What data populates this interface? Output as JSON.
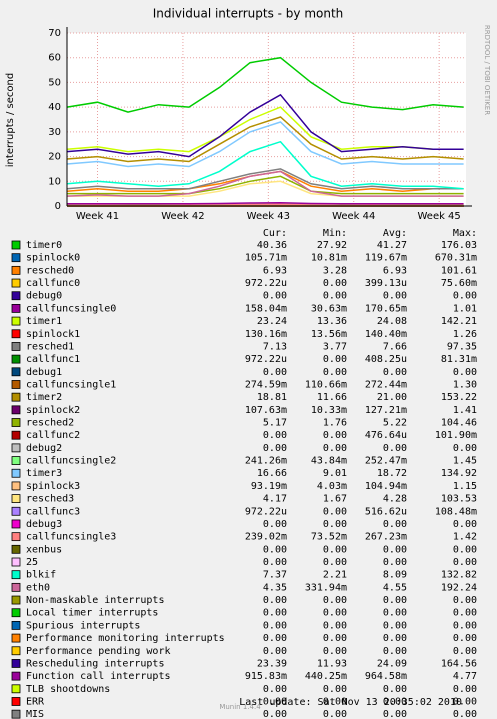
{
  "chart_data": {
    "type": "line",
    "title": "Individual interrupts - by month",
    "y_label": "interrupts / second",
    "side_label": "RRDTOOL / TOBI OETIKER",
    "footer_version": "Munin 1.4.4",
    "last_update": "Last update:  Sat Nov 13 20:35:02 2010",
    "columns": [
      "Cur:",
      "Min:",
      "Avg:",
      "Max:"
    ],
    "grid": true,
    "xlim": [
      0,
      32.7
    ],
    "xticks": [
      {
        "value": 2.5,
        "label": "Week 41"
      },
      {
        "value": 9.5,
        "label": "Week 42"
      },
      {
        "value": 16.5,
        "label": "Week 43"
      },
      {
        "value": 23.5,
        "label": "Week 44"
      },
      {
        "value": 30.5,
        "label": "Week 45"
      }
    ],
    "ylim": [
      0,
      70
    ],
    "yticks": [
      0,
      10,
      20,
      30,
      40,
      50,
      60,
      70
    ],
    "x": [
      0,
      2.5,
      5,
      7.5,
      10,
      12.5,
      15,
      17.5,
      20,
      22.5,
      25,
      27.5,
      30,
      32.5
    ],
    "series": [
      {
        "name": "timer0",
        "color": "#00cc00",
        "cur": "40.36",
        "min": "27.92",
        "avg": "41.27",
        "max": "176.03",
        "values": [
          40,
          42,
          38,
          41,
          40,
          48,
          58,
          60,
          50,
          42,
          40,
          39,
          41,
          40
        ]
      },
      {
        "name": "spinlock0",
        "color": "#0066b3",
        "cur": "105.71m",
        "min": "10.81m",
        "avg": "119.67m",
        "max": "670.31m",
        "values": [
          0.1,
          0.1,
          0.1,
          0.1,
          0.1,
          0.2,
          0.3,
          0.3,
          0.2,
          0.1,
          0.1,
          0.1,
          0.1,
          0.1
        ]
      },
      {
        "name": "resched0",
        "color": "#ff8000",
        "cur": "6.93",
        "min": "3.28",
        "avg": "6.93",
        "max": "101.61",
        "values": [
          6,
          7,
          6,
          6,
          7,
          9,
          12,
          14,
          8,
          6,
          7,
          6,
          7,
          7
        ]
      },
      {
        "name": "callfunc0",
        "color": "#ffcc00",
        "cur": "972.22u",
        "min": "0.00",
        "avg": "399.13u",
        "max": "75.60m",
        "values": [
          0,
          0,
          0,
          0,
          0,
          0,
          0,
          0,
          0,
          0,
          0,
          0,
          0,
          0
        ]
      },
      {
        "name": "debug0",
        "color": "#330099",
        "cur": "0.00",
        "min": "0.00",
        "avg": "0.00",
        "max": "0.00",
        "values": [
          0,
          0,
          0,
          0,
          0,
          0,
          0,
          0,
          0,
          0,
          0,
          0,
          0,
          0
        ]
      },
      {
        "name": "callfuncsingle0",
        "color": "#990099",
        "cur": "158.04m",
        "min": "30.63m",
        "avg": "170.65m",
        "max": "1.01",
        "values": [
          0.2,
          0.2,
          0.2,
          0.2,
          0.2,
          0.3,
          0.5,
          0.6,
          0.3,
          0.2,
          0.2,
          0.2,
          0.2,
          0.2
        ]
      },
      {
        "name": "timer1",
        "color": "#ccff00",
        "cur": "23.24",
        "min": "13.36",
        "avg": "24.08",
        "max": "142.21",
        "values": [
          23,
          24,
          22,
          23,
          22,
          28,
          35,
          40,
          28,
          23,
          24,
          24,
          23,
          23
        ]
      },
      {
        "name": "spinlock1",
        "color": "#ff0000",
        "cur": "130.16m",
        "min": "13.56m",
        "avg": "140.40m",
        "max": "1.26",
        "values": [
          0.1,
          0.1,
          0.1,
          0.1,
          0.1,
          0.2,
          0.3,
          0.3,
          0.2,
          0.1,
          0.1,
          0.1,
          0.1,
          0.1
        ]
      },
      {
        "name": "resched1",
        "color": "#808080",
        "cur": "7.13",
        "min": "3.77",
        "avg": "7.66",
        "max": "97.35",
        "values": [
          7,
          8,
          7,
          7,
          7,
          10,
          13,
          15,
          9,
          7,
          8,
          7,
          7,
          7
        ]
      },
      {
        "name": "callfunc1",
        "color": "#008f00",
        "cur": "972.22u",
        "min": "0.00",
        "avg": "408.25u",
        "max": "81.31m",
        "values": [
          0,
          0,
          0,
          0,
          0,
          0,
          0,
          0,
          0,
          0,
          0,
          0,
          0,
          0
        ]
      },
      {
        "name": "debug1",
        "color": "#00487d",
        "cur": "0.00",
        "min": "0.00",
        "avg": "0.00",
        "max": "0.00",
        "values": [
          0,
          0,
          0,
          0,
          0,
          0,
          0,
          0,
          0,
          0,
          0,
          0,
          0,
          0
        ]
      },
      {
        "name": "callfuncsingle1",
        "color": "#b35a00",
        "cur": "274.59m",
        "min": "110.66m",
        "avg": "272.44m",
        "max": "1.30",
        "values": [
          0.3,
          0.3,
          0.3,
          0.3,
          0.3,
          0.4,
          0.6,
          0.7,
          0.4,
          0.3,
          0.3,
          0.3,
          0.3,
          0.3
        ]
      },
      {
        "name": "timer2",
        "color": "#b38f00",
        "cur": "18.81",
        "min": "11.66",
        "avg": "21.00",
        "max": "153.22",
        "values": [
          19,
          20,
          18,
          19,
          18,
          25,
          32,
          36,
          25,
          19,
          20,
          19,
          20,
          19
        ]
      },
      {
        "name": "spinlock2",
        "color": "#6b006b",
        "cur": "107.63m",
        "min": "10.33m",
        "avg": "127.21m",
        "max": "1.41",
        "values": [
          0.1,
          0.1,
          0.1,
          0.1,
          0.1,
          0.2,
          0.3,
          0.3,
          0.2,
          0.1,
          0.1,
          0.1,
          0.1,
          0.1
        ]
      },
      {
        "name": "resched2",
        "color": "#8fb300",
        "cur": "5.17",
        "min": "1.76",
        "avg": "5.22",
        "max": "104.46",
        "values": [
          5,
          5,
          5,
          5,
          5,
          7,
          10,
          12,
          6,
          5,
          5,
          5,
          5,
          5
        ]
      },
      {
        "name": "callfunc2",
        "color": "#b30000",
        "cur": "0.00",
        "min": "0.00",
        "avg": "476.64u",
        "max": "101.90m",
        "values": [
          0,
          0,
          0,
          0,
          0,
          0,
          0,
          0,
          0,
          0,
          0,
          0,
          0,
          0
        ]
      },
      {
        "name": "debug2",
        "color": "#bebebe",
        "cur": "0.00",
        "min": "0.00",
        "avg": "0.00",
        "max": "0.00",
        "values": [
          0,
          0,
          0,
          0,
          0,
          0,
          0,
          0,
          0,
          0,
          0,
          0,
          0,
          0
        ]
      },
      {
        "name": "callfuncsingle2",
        "color": "#80ff80",
        "cur": "241.26m",
        "min": "43.84m",
        "avg": "252.47m",
        "max": "1.45",
        "values": [
          0.2,
          0.3,
          0.2,
          0.2,
          0.3,
          0.4,
          0.6,
          0.7,
          0.4,
          0.2,
          0.3,
          0.2,
          0.2,
          0.2
        ]
      },
      {
        "name": "timer3",
        "color": "#80c9ff",
        "cur": "16.66",
        "min": "9.01",
        "avg": "18.72",
        "max": "134.92",
        "values": [
          17,
          18,
          16,
          17,
          16,
          22,
          30,
          34,
          22,
          17,
          18,
          17,
          17,
          17
        ]
      },
      {
        "name": "spinlock3",
        "color": "#ffc080",
        "cur": "93.19m",
        "min": "4.03m",
        "avg": "104.94m",
        "max": "1.15",
        "values": [
          0.1,
          0.1,
          0.1,
          0.1,
          0.1,
          0.2,
          0.3,
          0.3,
          0.2,
          0.1,
          0.1,
          0.1,
          0.1,
          0.1
        ]
      },
      {
        "name": "resched3",
        "color": "#ffe680",
        "cur": "4.17",
        "min": "1.67",
        "avg": "4.28",
        "max": "103.53",
        "values": [
          4,
          4,
          4,
          4,
          4,
          6,
          9,
          10,
          5,
          4,
          4,
          4,
          4,
          4
        ]
      },
      {
        "name": "callfunc3",
        "color": "#aa80ff",
        "cur": "972.22u",
        "min": "0.00",
        "avg": "516.62u",
        "max": "108.48m",
        "values": [
          0,
          0,
          0,
          0,
          0,
          0,
          0,
          0,
          0,
          0,
          0,
          0,
          0,
          0
        ]
      },
      {
        "name": "debug3",
        "color": "#ee00cc",
        "cur": "0.00",
        "min": "0.00",
        "avg": "0.00",
        "max": "0.00",
        "values": [
          0,
          0,
          0,
          0,
          0,
          0,
          0,
          0,
          0,
          0,
          0,
          0,
          0,
          0
        ]
      },
      {
        "name": "callfuncsingle3",
        "color": "#ff8080",
        "cur": "239.02m",
        "min": "73.52m",
        "avg": "267.23m",
        "max": "1.42",
        "values": [
          0.2,
          0.3,
          0.2,
          0.2,
          0.3,
          0.4,
          0.6,
          0.7,
          0.4,
          0.2,
          0.3,
          0.2,
          0.2,
          0.2
        ]
      },
      {
        "name": "xenbus",
        "color": "#666600",
        "cur": "0.00",
        "min": "0.00",
        "avg": "0.00",
        "max": "0.00",
        "values": [
          0,
          0,
          0,
          0,
          0,
          0,
          0,
          0,
          0,
          0,
          0,
          0,
          0,
          0
        ]
      },
      {
        "name": "25",
        "color": "#ffbfff",
        "cur": "0.00",
        "min": "0.00",
        "avg": "0.00",
        "max": "0.00",
        "values": [
          0,
          0,
          0,
          0,
          0,
          0,
          0,
          0,
          0,
          0,
          0,
          0,
          0,
          0
        ]
      },
      {
        "name": "blkif",
        "color": "#00ffcc",
        "cur": "7.37",
        "min": "2.21",
        "avg": "8.09",
        "max": "132.82",
        "values": [
          9,
          10,
          9,
          8,
          9,
          14,
          22,
          26,
          12,
          8,
          9,
          8,
          8,
          7
        ]
      },
      {
        "name": "eth0",
        "color": "#cc6699",
        "cur": "4.35",
        "min": "331.94m",
        "avg": "4.55",
        "max": "192.24",
        "values": [
          4,
          4.5,
          4,
          4,
          5,
          8,
          12,
          14,
          6,
          4,
          4,
          4,
          4,
          4
        ]
      },
      {
        "name": "Non-maskable interrupts",
        "color": "#999900",
        "cur": "0.00",
        "min": "0.00",
        "avg": "0.00",
        "max": "0.00",
        "values": [
          0,
          0,
          0,
          0,
          0,
          0,
          0,
          0,
          0,
          0,
          0,
          0,
          0,
          0
        ]
      },
      {
        "name": "Local timer interrupts",
        "color": "#00cc00",
        "cur": "0.00",
        "min": "0.00",
        "avg": "0.00",
        "max": "0.00",
        "values": [
          0,
          0,
          0,
          0,
          0,
          0,
          0,
          0,
          0,
          0,
          0,
          0,
          0,
          0
        ]
      },
      {
        "name": "Spurious interrupts",
        "color": "#0066b3",
        "cur": "0.00",
        "min": "0.00",
        "avg": "0.00",
        "max": "0.00",
        "values": [
          0,
          0,
          0,
          0,
          0,
          0,
          0,
          0,
          0,
          0,
          0,
          0,
          0,
          0
        ]
      },
      {
        "name": "Performance monitoring interrupts",
        "color": "#ff8000",
        "cur": "0.00",
        "min": "0.00",
        "avg": "0.00",
        "max": "0.00",
        "values": [
          0,
          0,
          0,
          0,
          0,
          0,
          0,
          0,
          0,
          0,
          0,
          0,
          0,
          0
        ]
      },
      {
        "name": "Performance pending work",
        "color": "#ffcc00",
        "cur": "0.00",
        "min": "0.00",
        "avg": "0.00",
        "max": "0.00",
        "values": [
          0,
          0,
          0,
          0,
          0,
          0,
          0,
          0,
          0,
          0,
          0,
          0,
          0,
          0
        ]
      },
      {
        "name": "Rescheduling interrupts",
        "color": "#330099",
        "cur": "23.39",
        "min": "11.93",
        "avg": "24.09",
        "max": "164.56",
        "values": [
          22,
          23,
          21,
          22,
          20,
          28,
          38,
          45,
          30,
          22,
          23,
          24,
          23,
          23
        ]
      },
      {
        "name": "Function call interrupts",
        "color": "#990099",
        "cur": "915.83m",
        "min": "440.25m",
        "avg": "964.58m",
        "max": "4.77",
        "values": [
          0.9,
          0.9,
          0.9,
          0.9,
          0.9,
          1,
          1.2,
          1.3,
          1,
          0.9,
          0.9,
          0.9,
          0.9,
          0.9
        ]
      },
      {
        "name": "TLB shootdowns",
        "color": "#ccff00",
        "cur": "0.00",
        "min": "0.00",
        "avg": "0.00",
        "max": "0.00",
        "values": [
          0,
          0,
          0,
          0,
          0,
          0,
          0,
          0,
          0,
          0,
          0,
          0,
          0,
          0
        ]
      },
      {
        "name": "ERR",
        "color": "#ff0000",
        "cur": "0.00",
        "min": "0.00",
        "avg": "0.00",
        "max": "0.00",
        "values": [
          0,
          0,
          0,
          0,
          0,
          0,
          0,
          0,
          0,
          0,
          0,
          0,
          0,
          0
        ]
      },
      {
        "name": "MIS",
        "color": "#808080",
        "cur": "0.00",
        "min": "0.00",
        "avg": "0.00",
        "max": "0.00",
        "values": [
          0,
          0,
          0,
          0,
          0,
          0,
          0,
          0,
          0,
          0,
          0,
          0,
          0,
          0
        ]
      }
    ]
  }
}
